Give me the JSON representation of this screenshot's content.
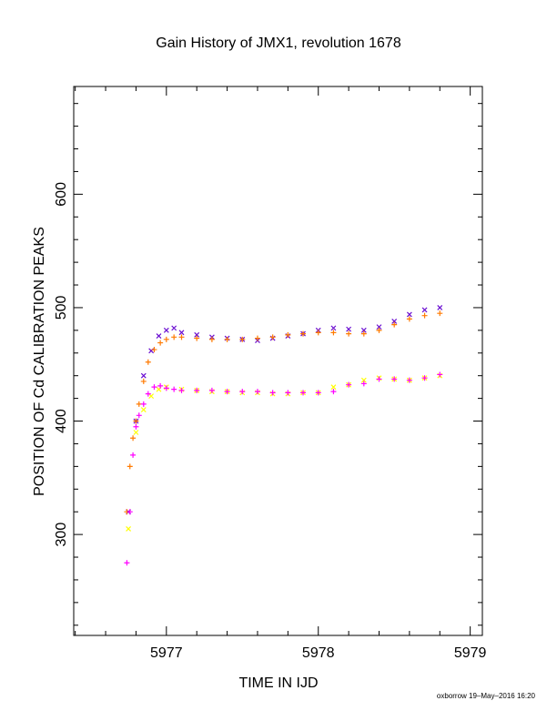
{
  "chart_data": {
    "type": "scatter",
    "title": "Gain History of JMX1, revolution 1678",
    "xlabel": "TIME IN IJD",
    "ylabel": "POSITION OF Cd CALIBRATION PEAKS",
    "xlim": [
      5976.39,
      5979.08
    ],
    "ylim": [
      211,
      695
    ],
    "x_ticks": [
      5977,
      5978,
      5979
    ],
    "y_ticks": [
      300,
      400,
      500,
      600
    ],
    "grid": false,
    "legend": "none",
    "series": [
      {
        "color": "#6a0dd1",
        "marker": "x",
        "x": [
          5976.75,
          5976.8,
          5976.85,
          5976.9,
          5976.95,
          5977.0,
          5977.05,
          5977.1,
          5977.2,
          5977.3,
          5977.4,
          5977.5,
          5977.6,
          5977.7,
          5977.8,
          5977.9,
          5978.0,
          5978.1,
          5978.2,
          5978.3,
          5978.4,
          5978.5,
          5978.6,
          5978.7,
          5978.8
        ],
        "y": [
          320,
          400,
          440,
          462,
          475,
          480,
          482,
          478,
          476,
          474,
          473,
          472,
          471,
          473,
          475,
          477,
          480,
          482,
          481,
          480,
          483,
          488,
          494,
          498,
          500
        ]
      },
      {
        "color": "#ffff00",
        "marker": "x",
        "x": [
          5976.75,
          5976.8,
          5976.85,
          5976.9,
          5976.95,
          5977.0,
          5977.1,
          5977.2,
          5977.3,
          5977.4,
          5977.5,
          5977.6,
          5977.7,
          5977.8,
          5977.9,
          5978.0,
          5978.1,
          5978.2,
          5978.3,
          5978.4,
          5978.5,
          5978.6,
          5978.7,
          5978.8
        ],
        "y": [
          305,
          390,
          410,
          422,
          428,
          430,
          428,
          427,
          426,
          426,
          425,
          425,
          424,
          424,
          425,
          425,
          430,
          432,
          436,
          438,
          437,
          436,
          438,
          440
        ]
      },
      {
        "color": "#ff7a00",
        "marker": "+",
        "x": [
          5976.74,
          5976.76,
          5976.78,
          5976.8,
          5976.82,
          5976.85,
          5976.88,
          5976.92,
          5976.96,
          5977.0,
          5977.05,
          5977.1,
          5977.2,
          5977.3,
          5977.4,
          5977.5,
          5977.6,
          5977.7,
          5977.8,
          5977.9,
          5978.0,
          5978.1,
          5978.2,
          5978.3,
          5978.4,
          5978.5,
          5978.6,
          5978.7,
          5978.8
        ],
        "y": [
          320,
          360,
          385,
          400,
          415,
          435,
          452,
          463,
          469,
          472,
          474,
          474,
          473,
          472,
          472,
          472,
          473,
          474,
          476,
          477,
          478,
          478,
          477,
          477,
          480,
          485,
          490,
          493,
          495
        ]
      },
      {
        "color": "#ff00ff",
        "marker": "+",
        "x": [
          5976.74,
          5976.76,
          5976.78,
          5976.8,
          5976.82,
          5976.85,
          5976.88,
          5976.92,
          5976.96,
          5977.0,
          5977.05,
          5977.1,
          5977.2,
          5977.3,
          5977.4,
          5977.5,
          5977.6,
          5977.7,
          5977.8,
          5977.9,
          5978.0,
          5978.1,
          5978.2,
          5978.3,
          5978.4,
          5978.5,
          5978.6,
          5978.7,
          5978.8
        ],
        "y": [
          275,
          320,
          370,
          395,
          405,
          415,
          424,
          430,
          431,
          429,
          428,
          427,
          427,
          427,
          426,
          426,
          426,
          425,
          425,
          425,
          425,
          426,
          432,
          433,
          437,
          437,
          436,
          438,
          441
        ]
      }
    ]
  },
  "footer": "oxborrow 19–May–2016 16:20"
}
